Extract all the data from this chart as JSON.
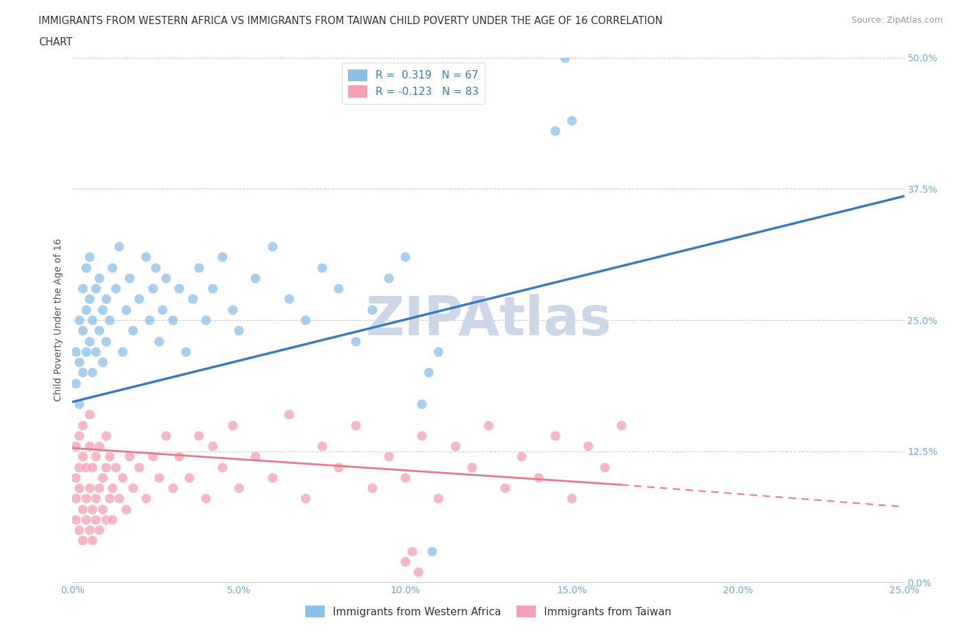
{
  "title_line1": "IMMIGRANTS FROM WESTERN AFRICA VS IMMIGRANTS FROM TAIWAN CHILD POVERTY UNDER THE AGE OF 16 CORRELATION",
  "title_line2": "CHART",
  "source_text": "Source: ZipAtlas.com",
  "ylabel": "Child Poverty Under the Age of 16",
  "r_western": 0.319,
  "n_western": 67,
  "r_taiwan": -0.123,
  "n_taiwan": 83,
  "xlim": [
    0.0,
    0.25
  ],
  "ylim": [
    0.0,
    0.5
  ],
  "xticks": [
    0.0,
    0.05,
    0.1,
    0.15,
    0.2,
    0.25
  ],
  "yticks": [
    0.0,
    0.125,
    0.25,
    0.375,
    0.5
  ],
  "xticklabels": [
    "0.0%",
    "5.0%",
    "10.0%",
    "15.0%",
    "20.0%",
    "25.0%"
  ],
  "yticklabels": [
    "0.0%",
    "12.5%",
    "25.0%",
    "37.5%",
    "50.0%"
  ],
  "color_western": "#8bbfe8",
  "color_taiwan": "#f4a0b5",
  "color_line_western": "#3a7abf",
  "color_line_taiwan": "#e8788a",
  "color_tick_label": "#6aacdc",
  "background_color": "#ffffff",
  "watermark_text": "ZIPAtlas",
  "watermark_color": "#ccd8e8",
  "legend_label_western": "Immigrants from Western Africa",
  "legend_label_taiwan": "Immigrants from Taiwan",
  "western_scatter_x": [
    0.001,
    0.001,
    0.002,
    0.002,
    0.002,
    0.003,
    0.003,
    0.003,
    0.004,
    0.004,
    0.004,
    0.005,
    0.005,
    0.005,
    0.006,
    0.006,
    0.007,
    0.007,
    0.008,
    0.008,
    0.009,
    0.009,
    0.01,
    0.01,
    0.011,
    0.012,
    0.013,
    0.014,
    0.015,
    0.016,
    0.017,
    0.018,
    0.02,
    0.022,
    0.023,
    0.024,
    0.025,
    0.026,
    0.027,
    0.028,
    0.03,
    0.032,
    0.034,
    0.036,
    0.038,
    0.04,
    0.042,
    0.045,
    0.048,
    0.05,
    0.055,
    0.06,
    0.065,
    0.07,
    0.075,
    0.08,
    0.085,
    0.09,
    0.095,
    0.1,
    0.105,
    0.107,
    0.108,
    0.11,
    0.145,
    0.148,
    0.15
  ],
  "western_scatter_y": [
    0.19,
    0.22,
    0.17,
    0.21,
    0.25,
    0.2,
    0.24,
    0.28,
    0.22,
    0.26,
    0.3,
    0.23,
    0.27,
    0.31,
    0.2,
    0.25,
    0.22,
    0.28,
    0.24,
    0.29,
    0.21,
    0.26,
    0.23,
    0.27,
    0.25,
    0.3,
    0.28,
    0.32,
    0.22,
    0.26,
    0.29,
    0.24,
    0.27,
    0.31,
    0.25,
    0.28,
    0.3,
    0.23,
    0.26,
    0.29,
    0.25,
    0.28,
    0.22,
    0.27,
    0.3,
    0.25,
    0.28,
    0.31,
    0.26,
    0.24,
    0.29,
    0.32,
    0.27,
    0.25,
    0.3,
    0.28,
    0.23,
    0.26,
    0.29,
    0.31,
    0.17,
    0.2,
    0.03,
    0.22,
    0.43,
    0.5,
    0.44
  ],
  "taiwan_scatter_x": [
    0.001,
    0.001,
    0.001,
    0.001,
    0.002,
    0.002,
    0.002,
    0.002,
    0.003,
    0.003,
    0.003,
    0.003,
    0.004,
    0.004,
    0.004,
    0.005,
    0.005,
    0.005,
    0.005,
    0.006,
    0.006,
    0.006,
    0.007,
    0.007,
    0.007,
    0.008,
    0.008,
    0.008,
    0.009,
    0.009,
    0.01,
    0.01,
    0.01,
    0.011,
    0.011,
    0.012,
    0.012,
    0.013,
    0.014,
    0.015,
    0.016,
    0.017,
    0.018,
    0.02,
    0.022,
    0.024,
    0.026,
    0.028,
    0.03,
    0.032,
    0.035,
    0.038,
    0.04,
    0.042,
    0.045,
    0.048,
    0.05,
    0.055,
    0.06,
    0.065,
    0.07,
    0.075,
    0.08,
    0.085,
    0.09,
    0.095,
    0.1,
    0.105,
    0.11,
    0.115,
    0.12,
    0.125,
    0.13,
    0.135,
    0.14,
    0.145,
    0.15,
    0.155,
    0.16,
    0.165,
    0.1,
    0.102,
    0.104
  ],
  "taiwan_scatter_y": [
    0.1,
    0.06,
    0.13,
    0.08,
    0.11,
    0.05,
    0.14,
    0.09,
    0.07,
    0.12,
    0.04,
    0.15,
    0.08,
    0.11,
    0.06,
    0.09,
    0.13,
    0.05,
    0.16,
    0.07,
    0.11,
    0.04,
    0.08,
    0.12,
    0.06,
    0.09,
    0.13,
    0.05,
    0.1,
    0.07,
    0.11,
    0.06,
    0.14,
    0.08,
    0.12,
    0.09,
    0.06,
    0.11,
    0.08,
    0.1,
    0.07,
    0.12,
    0.09,
    0.11,
    0.08,
    0.12,
    0.1,
    0.14,
    0.09,
    0.12,
    0.1,
    0.14,
    0.08,
    0.13,
    0.11,
    0.15,
    0.09,
    0.12,
    0.1,
    0.16,
    0.08,
    0.13,
    0.11,
    0.15,
    0.09,
    0.12,
    0.1,
    0.14,
    0.08,
    0.13,
    0.11,
    0.15,
    0.09,
    0.12,
    0.1,
    0.14,
    0.08,
    0.13,
    0.11,
    0.15,
    0.02,
    0.03,
    0.01
  ],
  "trend_blue_x0": 0.0,
  "trend_blue_y0": 0.172,
  "trend_blue_x1": 0.25,
  "trend_blue_y1": 0.368,
  "trend_pink_x0": 0.0,
  "trend_pink_y0": 0.128,
  "trend_pink_x1": 0.165,
  "trend_pink_y1": 0.093,
  "trend_pink_dash_x0": 0.165,
  "trend_pink_dash_y0": 0.093,
  "trend_pink_dash_x1": 0.25,
  "trend_pink_dash_y1": 0.072
}
